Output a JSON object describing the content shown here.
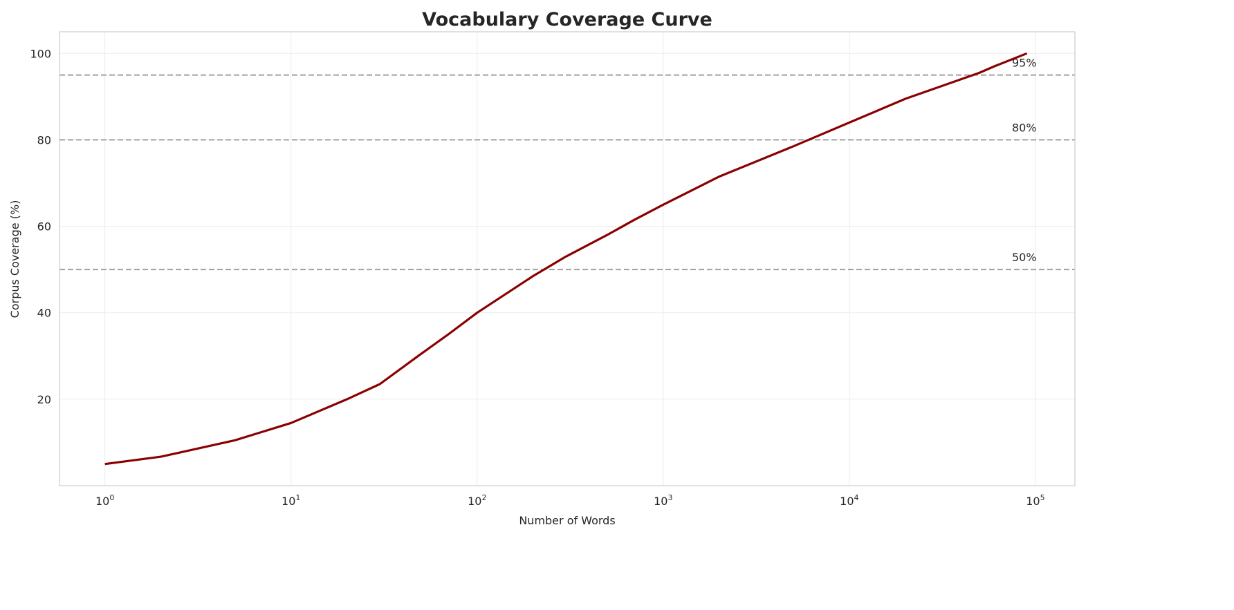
{
  "chart_data": {
    "type": "line",
    "title": "Vocabulary Coverage Curve",
    "xlabel": "Number of Words",
    "ylabel": "Corpus Coverage (%)",
    "xscale": "log",
    "xlim": [
      0.57,
      163000
    ],
    "ylim": [
      0,
      105
    ],
    "grid": true,
    "x_ticks": [
      1,
      10,
      100,
      1000,
      10000,
      100000
    ],
    "x_tick_labels": [
      {
        "base": "10",
        "exp": "0"
      },
      {
        "base": "10",
        "exp": "1"
      },
      {
        "base": "10",
        "exp": "2"
      },
      {
        "base": "10",
        "exp": "3"
      },
      {
        "base": "10",
        "exp": "4"
      },
      {
        "base": "10",
        "exp": "5"
      }
    ],
    "y_ticks": [
      20,
      40,
      60,
      80,
      100
    ],
    "y_tick_labels": [
      "20",
      "40",
      "60",
      "80",
      "100"
    ],
    "series": [
      {
        "color": "#8b0000",
        "x": [
          1,
          2,
          5,
          10,
          20,
          30,
          50,
          70,
          100,
          200,
          300,
          500,
          700,
          1000,
          2000,
          5000,
          10000,
          20000,
          50000,
          60000,
          90000
        ],
        "y": [
          5,
          6.7,
          10.5,
          14.5,
          20,
          23.5,
          30.5,
          35,
          40,
          48.5,
          53,
          58,
          61.5,
          65,
          71.5,
          78.5,
          84,
          89.5,
          95.5,
          97,
          100
        ]
      }
    ],
    "reference_lines": [
      {
        "y": 95,
        "label": "95%",
        "color": "#a0a0a0",
        "style": "dashed"
      },
      {
        "y": 80,
        "label": "80%",
        "color": "#a0a0a0",
        "style": "dashed"
      },
      {
        "y": 50,
        "label": "50%",
        "color": "#a0a0a0",
        "style": "dashed"
      }
    ]
  }
}
